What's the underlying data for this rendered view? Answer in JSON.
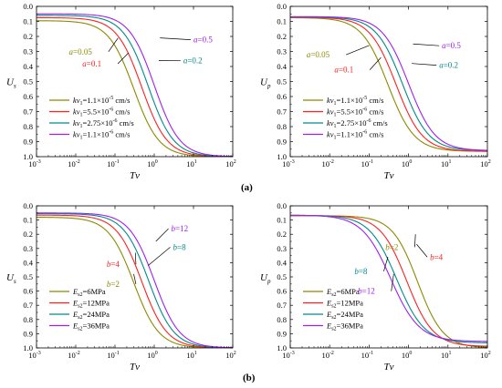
{
  "figure": {
    "label_a": "(a)",
    "label_b": "(b)"
  },
  "chart_data": [
    {
      "id": "a-left",
      "type": "line",
      "xscale": "log",
      "xlim": [
        0.001,
        100
      ],
      "ylim": [
        0.0,
        1.0
      ],
      "y_inverted": true,
      "grid": false,
      "xlabel": "Tv",
      "ylabel": "U",
      "ylabel_sub": "s",
      "yticks": [
        "0.0",
        "0.1",
        "0.2",
        "0.3",
        "0.4",
        "0.5",
        "0.6",
        "0.7",
        "0.8",
        "0.9",
        "1.0"
      ],
      "xticks": [
        {
          "b": "10",
          "e": "-3"
        },
        {
          "b": "10",
          "e": "-2"
        },
        {
          "b": "10",
          "e": "-1"
        },
        {
          "b": "10",
          "e": "0"
        },
        {
          "b": "10",
          "e": "1"
        },
        {
          "b": "10",
          "e": "2"
        }
      ],
      "legend_position": "bottom-left",
      "series": [
        {
          "name_pre": "kv",
          "name_sub": "1",
          "name_mid": "=1.1×10",
          "name_sup": "-5",
          "name_post": " cm/s",
          "color": "#8B8B00",
          "u0": 0.095,
          "t50": 0.3,
          "n": 1.35
        },
        {
          "name_pre": "kv",
          "name_sub": "1",
          "name_mid": "=5.5×10",
          "name_sup": "-6",
          "name_post": " cm/s",
          "color": "#ff2020",
          "u0": 0.075,
          "t50": 0.48,
          "n": 1.35
        },
        {
          "name_pre": "kv",
          "name_sub": "1",
          "name_mid": "=2.75×10",
          "name_sup": "-6",
          "name_post": " cm/s",
          "color": "#008b8b",
          "u0": 0.06,
          "t50": 0.7,
          "n": 1.35
        },
        {
          "name_pre": "kv",
          "name_sub": "1",
          "name_mid": "=1.1×10",
          "name_sup": "-6",
          "name_post": " cm/s",
          "color": "#a020f0",
          "u0": 0.05,
          "t50": 1.0,
          "n": 1.35
        }
      ],
      "annotations": [
        {
          "text": "a=0.05",
          "series": 0,
          "tx": 0.026,
          "ty": 0.32,
          "px": 0.12,
          "py": 0.21
        },
        {
          "text": "a=0.1",
          "series": 1,
          "tx": 0.045,
          "ty": 0.4,
          "px": 0.22,
          "py": 0.31
        },
        {
          "text": "a=0.2",
          "series": 2,
          "tx": 5.5,
          "ty": 0.38,
          "px": 1.3,
          "py": 0.36
        },
        {
          "text": "a=0.5",
          "series": 3,
          "tx": 10.0,
          "ty": 0.24,
          "px": 1.4,
          "py": 0.21
        }
      ]
    },
    {
      "id": "a-right",
      "type": "line",
      "xscale": "log",
      "xlim": [
        0.001,
        100
      ],
      "ylim": [
        0.0,
        1.0
      ],
      "y_inverted": true,
      "grid": false,
      "xlabel": "Tv",
      "ylabel": "U",
      "ylabel_sub": "p",
      "yticks": [
        "0.0",
        "0.1",
        "0.2",
        "0.3",
        "0.4",
        "0.5",
        "0.6",
        "0.7",
        "0.8",
        "0.9",
        "1.0"
      ],
      "xticks": [
        {
          "b": "10",
          "e": "-3"
        },
        {
          "b": "10",
          "e": "-2"
        },
        {
          "b": "10",
          "e": "-1"
        },
        {
          "b": "10",
          "e": "0"
        },
        {
          "b": "10",
          "e": "1"
        },
        {
          "b": "10",
          "e": "2"
        }
      ],
      "legend_position": "bottom-left",
      "series": [
        {
          "name_pre": "kv",
          "name_sub": "1",
          "name_mid": "=1.1×10",
          "name_sup": "-5",
          "name_post": " cm/s",
          "color": "#8B8B00",
          "u0": 0.075,
          "t50": 0.3,
          "n": 1.3,
          "u_end": 0.965
        },
        {
          "name_pre": "kv",
          "name_sub": "1",
          "name_mid": "=5.5×10",
          "name_sup": "-6",
          "name_post": " cm/s",
          "color": "#ff2020",
          "u0": 0.072,
          "t50": 0.48,
          "n": 1.3,
          "u_end": 0.965
        },
        {
          "name_pre": "kv",
          "name_sub": "1",
          "name_mid": "=2.75×10",
          "name_sup": "-6",
          "name_post": " cm/s",
          "color": "#008b8b",
          "u0": 0.07,
          "t50": 0.7,
          "n": 1.3,
          "u_end": 0.96
        },
        {
          "name_pre": "kv",
          "name_sub": "1",
          "name_mid": "=1.1×10",
          "name_sup": "-6",
          "name_post": " cm/s",
          "color": "#a020f0",
          "u0": 0.068,
          "t50": 1.0,
          "n": 1.3,
          "u_end": 0.96
        }
      ],
      "annotations": [
        {
          "text": "a=0.05",
          "series": 0,
          "tx": 0.01,
          "ty": 0.34,
          "px": 0.1,
          "py": 0.26
        },
        {
          "text": "a=0.1",
          "series": 1,
          "tx": 0.04,
          "ty": 0.44,
          "px": 0.2,
          "py": 0.34
        },
        {
          "text": "a=0.2",
          "series": 2,
          "tx": 6.0,
          "ty": 0.41,
          "px": 1.2,
          "py": 0.38
        },
        {
          "text": "a=0.5",
          "series": 3,
          "tx": 7.0,
          "ty": 0.28,
          "px": 1.3,
          "py": 0.25
        }
      ]
    },
    {
      "id": "b-left",
      "type": "line",
      "xscale": "log",
      "xlim": [
        0.001,
        100
      ],
      "ylim": [
        0.0,
        1.0
      ],
      "y_inverted": true,
      "grid": false,
      "xlabel": "Tv",
      "ylabel": "U",
      "ylabel_sub": "s",
      "yticks": [
        "0.0",
        "0.1",
        "0.2",
        "0.3",
        "0.4",
        "0.5",
        "0.6",
        "0.7",
        "0.8",
        "0.9",
        "1.0"
      ],
      "xticks": [
        {
          "b": "10",
          "e": "-3"
        },
        {
          "b": "10",
          "e": "-2"
        },
        {
          "b": "10",
          "e": "-1"
        },
        {
          "b": "10",
          "e": "0"
        },
        {
          "b": "10",
          "e": "1"
        },
        {
          "b": "10",
          "e": "2"
        }
      ],
      "legend_position": "bottom-left",
      "series": [
        {
          "name_pre": "E",
          "name_sub": "s2",
          "name_mid": "=6MPa",
          "name_sup": "",
          "name_post": "",
          "color": "#8B8B00",
          "u0": 0.08,
          "t50": 0.3,
          "n": 1.35
        },
        {
          "name_pre": "E",
          "name_sub": "s2",
          "name_mid": "=12MPa",
          "name_sup": "",
          "name_post": "",
          "color": "#ff2020",
          "u0": 0.065,
          "t50": 0.48,
          "n": 1.35
        },
        {
          "name_pre": "E",
          "name_sub": "s2",
          "name_mid": "=24MPa",
          "name_sup": "",
          "name_post": "",
          "color": "#008b8b",
          "u0": 0.055,
          "t50": 0.72,
          "n": 1.35
        },
        {
          "name_pre": "E",
          "name_sub": "s2",
          "name_mid": "=36MPa",
          "name_sup": "",
          "name_post": "",
          "color": "#a020f0",
          "u0": 0.05,
          "t50": 1.0,
          "n": 1.35
        }
      ],
      "annotations": [
        {
          "text": "b=2",
          "series": 0,
          "tx": 0.13,
          "ty": 0.57,
          "px": 0.3,
          "py": 0.48
        },
        {
          "text": "b=4",
          "series": 1,
          "tx": 0.13,
          "ty": 0.43,
          "px": 0.33,
          "py": 0.33
        },
        {
          "text": "b=8",
          "series": 2,
          "tx": 3.0,
          "ty": 0.31,
          "px": 0.7,
          "py": 0.42
        },
        {
          "text": "b=12",
          "series": 3,
          "tx": 2.7,
          "ty": 0.18,
          "px": 1.1,
          "py": 0.25
        }
      ]
    },
    {
      "id": "b-right",
      "type": "line",
      "xscale": "log",
      "xlim": [
        0.001,
        100
      ],
      "ylim": [
        0.0,
        1.0
      ],
      "y_inverted": true,
      "grid": false,
      "xlabel": "Tv",
      "ylabel": "U",
      "ylabel_sub": "p",
      "yticks": [
        "0.0",
        "0.1",
        "0.2",
        "0.3",
        "0.4",
        "0.5",
        "0.6",
        "0.7",
        "0.8",
        "0.9",
        "1.0"
      ],
      "xticks": [
        {
          "b": "10",
          "e": "-3"
        },
        {
          "b": "10",
          "e": "-2"
        },
        {
          "b": "10",
          "e": "-1"
        },
        {
          "b": "10",
          "e": "0"
        },
        {
          "b": "10",
          "e": "1"
        },
        {
          "b": "10",
          "e": "2"
        }
      ],
      "legend_position": "bottom-left",
      "series": [
        {
          "name_pre": "E",
          "name_sub": "s2",
          "name_mid": "=6MPa",
          "name_sup": "",
          "name_post": "",
          "color": "#8B8B00",
          "u0": 0.07,
          "t50": 1.7,
          "n": 1.35,
          "u_end": 1.0
        },
        {
          "name_pre": "E",
          "name_sub": "s2",
          "name_mid": "=12MPa",
          "name_sup": "",
          "name_post": "",
          "color": "#ff2020",
          "u0": 0.068,
          "t50": 0.9,
          "n": 1.3,
          "u_end": 0.99
        },
        {
          "name_pre": "E",
          "name_sub": "s2",
          "name_mid": "=24MPa",
          "name_sup": "",
          "name_post": "",
          "color": "#008b8b",
          "u0": 0.066,
          "t50": 0.5,
          "n": 1.25,
          "u_end": 0.965
        },
        {
          "name_pre": "E",
          "name_sub": "s2",
          "name_mid": "=36MPa",
          "name_sup": "",
          "name_post": "",
          "color": "#a020f0",
          "u0": 0.065,
          "t50": 0.35,
          "n": 1.2,
          "u_end": 0.955
        }
      ],
      "annotations": [
        {
          "text": "b=2",
          "series": 0,
          "tx": 0.55,
          "ty": 0.31,
          "px": 1.5,
          "py": 0.2
        },
        {
          "text": "b=4",
          "series": 1,
          "tx": 3.5,
          "ty": 0.38,
          "px": 1.6,
          "py": 0.27
        },
        {
          "text": "b=8",
          "series": 2,
          "tx": 0.09,
          "ty": 0.48,
          "px": 0.3,
          "py": 0.36
        },
        {
          "text": "b=12",
          "series": 3,
          "tx": 0.14,
          "ty": 0.62,
          "px": 0.42,
          "py": 0.48
        }
      ]
    }
  ]
}
